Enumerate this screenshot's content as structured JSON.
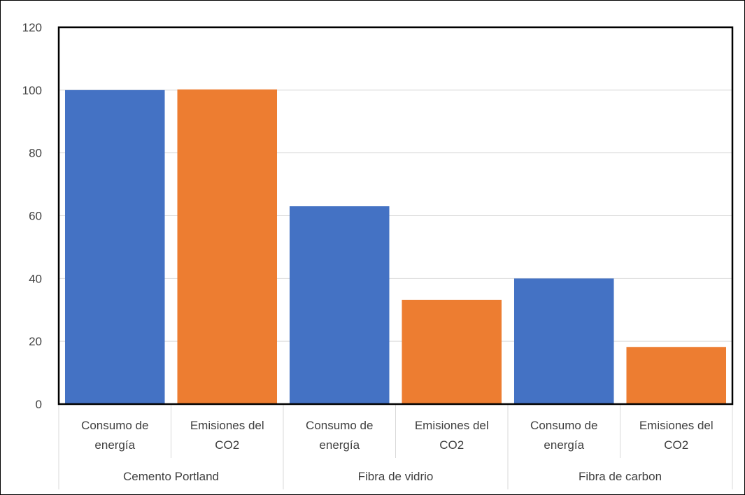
{
  "chart_data": {
    "type": "bar",
    "title": "",
    "xlabel": "",
    "ylabel": "",
    "ylim": [
      0,
      120
    ],
    "yticks": [
      0,
      20,
      40,
      60,
      80,
      100,
      120
    ],
    "grid": true,
    "legend": "none",
    "groups": [
      {
        "label": "Cemento Portland",
        "bars": [
          {
            "label_lines": [
              "Consumo de",
              "energía"
            ],
            "value": 100,
            "color": "#4472C4"
          },
          {
            "label_lines": [
              "Emisiones del",
              "CO2"
            ],
            "value": 100.2,
            "color": "#ED7D31"
          }
        ]
      },
      {
        "label": "Fibra de vidrio",
        "bars": [
          {
            "label_lines": [
              "Consumo de",
              "energía"
            ],
            "value": 63,
            "color": "#4472C4"
          },
          {
            "label_lines": [
              "Emisiones del",
              "CO2"
            ],
            "value": 33.2,
            "color": "#ED7D31"
          }
        ]
      },
      {
        "label": "Fibra de carbon",
        "bars": [
          {
            "label_lines": [
              "Consumo de",
              "energía"
            ],
            "value": 40,
            "color": "#4472C4"
          },
          {
            "label_lines": [
              "Emisiones del",
              "CO2"
            ],
            "value": 18.2,
            "color": "#ED7D31"
          }
        ]
      }
    ]
  }
}
